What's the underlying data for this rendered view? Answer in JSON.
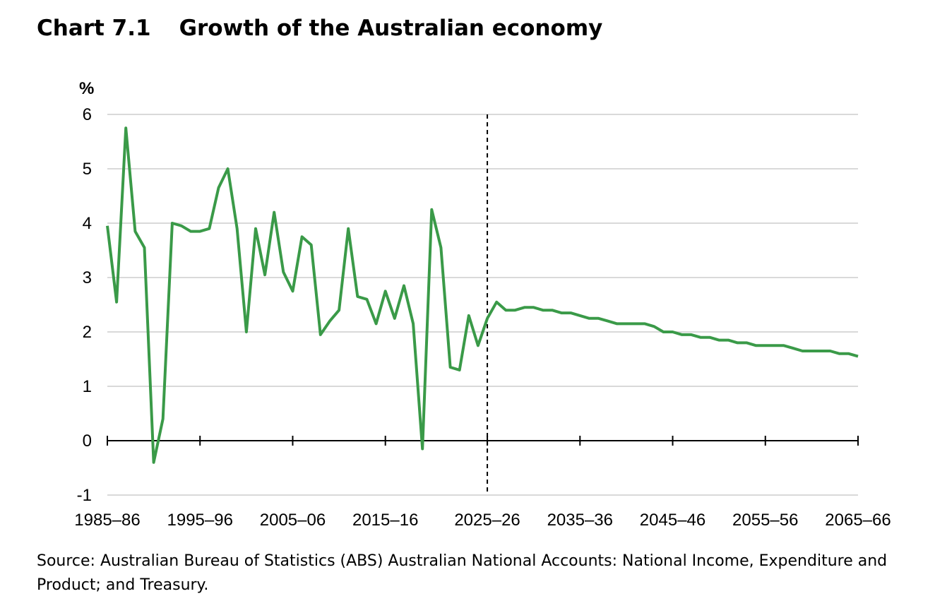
{
  "title": {
    "number": "Chart 7.1",
    "text": "Growth of the Australian economy"
  },
  "source": "Source: Australian Bureau of Statistics (ABS) Australian National Accounts: National Income, Expenditure and Product; and Treasury.",
  "colors": {
    "line": "#3a9a48",
    "grid": "#d9d9d9",
    "axis": "#000000"
  },
  "chart_data": {
    "type": "line",
    "title": "Growth of the Australian economy",
    "ylabel": "%",
    "xlabel": "",
    "ylim": [
      -1,
      6
    ],
    "yticks": [
      -1,
      0,
      1,
      2,
      3,
      4,
      5,
      6
    ],
    "xtick_labels": [
      "1985–86",
      "1995–96",
      "2005–06",
      "2015–16",
      "2025–26",
      "2035–36",
      "2045–46",
      "2055–56",
      "2065–66"
    ],
    "projection_start": "2025–26",
    "grid": true,
    "series": [
      {
        "values": [
          3.95,
          2.55,
          5.75,
          3.85,
          3.55,
          -0.4,
          0.4,
          4.0,
          3.95,
          3.85,
          3.85,
          3.9,
          4.65,
          5.0,
          3.9,
          2.0,
          3.9,
          3.05,
          4.2,
          3.1,
          2.75,
          3.75,
          3.6,
          1.95,
          2.2,
          2.4,
          3.9,
          2.65,
          2.6,
          2.15,
          2.75,
          2.25,
          2.85,
          2.15,
          -0.15,
          4.25,
          3.55,
          1.35,
          1.3,
          2.3,
          1.75,
          2.25,
          2.55,
          2.4,
          2.4,
          2.45,
          2.45,
          2.4,
          2.4,
          2.35,
          2.35,
          2.3,
          2.25,
          2.25,
          2.2,
          2.15,
          2.15,
          2.15,
          2.15,
          2.1,
          2.0,
          2.0,
          1.95,
          1.95,
          1.9,
          1.9,
          1.85,
          1.85,
          1.8,
          1.8,
          1.75,
          1.75,
          1.75,
          1.75,
          1.7,
          1.65,
          1.65,
          1.65,
          1.65,
          1.6,
          1.6,
          1.55
        ]
      }
    ]
  }
}
